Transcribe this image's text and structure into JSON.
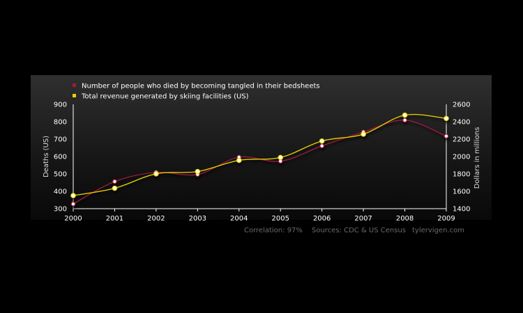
{
  "chart_data": {
    "type": "line",
    "x": [
      "2000",
      "2001",
      "2002",
      "2003",
      "2004",
      "2005",
      "2006",
      "2007",
      "2008",
      "2009"
    ],
    "series": [
      {
        "name": "Number of people who died by becoming tangled in their bedsheets",
        "axis": "left",
        "color": "#9b1c3c",
        "values": [
          327,
          456,
          509,
          497,
          596,
          573,
          661,
          741,
          809,
          717
        ]
      },
      {
        "name": "Total revenue generated by skiing facilities (US)",
        "axis": "right",
        "color": "#e8d200",
        "values": [
          1551,
          1635,
          1801,
          1827,
          1956,
          1989,
          2178,
          2257,
          2476,
          2438
        ]
      }
    ],
    "ylabel": "Deaths (US)",
    "ylim": [
      300,
      900
    ],
    "yticks": [
      "900",
      "800",
      "700",
      "600",
      "500",
      "400",
      "300"
    ],
    "y2label": "Dollars in millions",
    "y2lim": [
      1400,
      2600
    ],
    "y2ticks": [
      "2600",
      "2400",
      "2200",
      "2000",
      "1800",
      "1600",
      "1400"
    ],
    "grid": false,
    "legend_position": "top-left"
  },
  "footer": {
    "correlation": "Correlation: 97%",
    "sources": "Sources: CDC & US Census",
    "site": "tylervigen.com"
  }
}
